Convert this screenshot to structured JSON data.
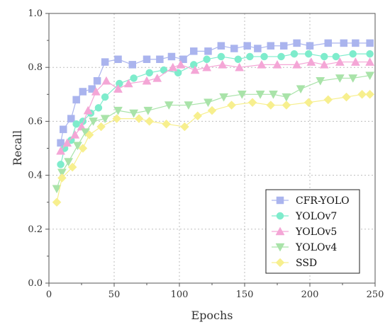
{
  "chart_data": {
    "type": "line",
    "xlabel": "Epochs",
    "ylabel": "Recall",
    "xlim": [
      0,
      250
    ],
    "ylim": [
      0.0,
      1.0
    ],
    "xticks": [
      "0",
      "50",
      "100",
      "150",
      "200",
      "250"
    ],
    "yticks": [
      "0.0",
      "0.2",
      "0.4",
      "0.6",
      "0.8",
      "1.0"
    ],
    "grid": true,
    "legend_position": "bottom-right",
    "series": [
      {
        "name": "CFR-YOLO",
        "color": "#aab4ee",
        "marker": "square",
        "x": [
          9,
          11,
          17,
          21,
          26,
          33,
          37,
          43,
          53,
          64,
          75,
          85,
          94,
          103,
          111,
          122,
          132,
          142,
          152,
          160,
          170,
          180,
          190,
          200,
          214,
          226,
          235,
          246
        ],
        "y": [
          0.52,
          0.57,
          0.61,
          0.68,
          0.71,
          0.72,
          0.75,
          0.82,
          0.83,
          0.81,
          0.83,
          0.83,
          0.84,
          0.83,
          0.86,
          0.86,
          0.88,
          0.87,
          0.88,
          0.87,
          0.88,
          0.88,
          0.89,
          0.88,
          0.89,
          0.89,
          0.89,
          0.89
        ]
      },
      {
        "name": "YOLOv7",
        "color": "#7eeccc",
        "marker": "circle",
        "x": [
          9,
          12,
          17,
          21,
          26,
          32,
          38,
          43,
          54,
          65,
          77,
          88,
          99,
          111,
          121,
          132,
          145,
          154,
          165,
          178,
          188,
          199,
          211,
          220,
          233,
          246
        ],
        "y": [
          0.44,
          0.5,
          0.53,
          0.59,
          0.6,
          0.63,
          0.65,
          0.69,
          0.74,
          0.76,
          0.78,
          0.79,
          0.78,
          0.81,
          0.83,
          0.84,
          0.83,
          0.84,
          0.84,
          0.84,
          0.85,
          0.85,
          0.84,
          0.84,
          0.85,
          0.85
        ]
      },
      {
        "name": "YOLOv5",
        "color": "#f4a6d6",
        "marker": "triangle-up",
        "x": [
          9,
          14,
          20,
          25,
          30,
          36,
          44,
          53,
          61,
          75,
          83,
          95,
          101,
          112,
          121,
          133,
          146,
          163,
          175,
          190,
          201,
          211,
          223,
          235,
          246
        ],
        "y": [
          0.49,
          0.52,
          0.55,
          0.58,
          0.64,
          0.71,
          0.75,
          0.72,
          0.74,
          0.75,
          0.76,
          0.8,
          0.81,
          0.79,
          0.8,
          0.81,
          0.8,
          0.81,
          0.81,
          0.81,
          0.82,
          0.81,
          0.82,
          0.82,
          0.82
        ]
      },
      {
        "name": "YOLOv4",
        "color": "#a9e3a9",
        "marker": "triangle-down",
        "x": [
          6,
          10,
          15,
          22,
          28,
          34,
          43,
          53,
          65,
          76,
          92,
          107,
          122,
          134,
          148,
          162,
          172,
          182,
          193,
          208,
          223,
          233,
          246
        ],
        "y": [
          0.35,
          0.41,
          0.45,
          0.51,
          0.56,
          0.6,
          0.61,
          0.64,
          0.63,
          0.64,
          0.66,
          0.66,
          0.67,
          0.69,
          0.7,
          0.7,
          0.7,
          0.69,
          0.72,
          0.75,
          0.76,
          0.76,
          0.77
        ]
      },
      {
        "name": "SSD",
        "color": "#f7ef8e",
        "marker": "diamond",
        "x": [
          6,
          10,
          18,
          26,
          31,
          40,
          52,
          69,
          77,
          90,
          104,
          114,
          125,
          140,
          156,
          170,
          182,
          199,
          214,
          228,
          240,
          246
        ],
        "y": [
          0.3,
          0.39,
          0.43,
          0.5,
          0.55,
          0.58,
          0.61,
          0.61,
          0.6,
          0.59,
          0.58,
          0.62,
          0.64,
          0.66,
          0.67,
          0.66,
          0.66,
          0.67,
          0.68,
          0.69,
          0.7,
          0.7
        ]
      }
    ]
  }
}
